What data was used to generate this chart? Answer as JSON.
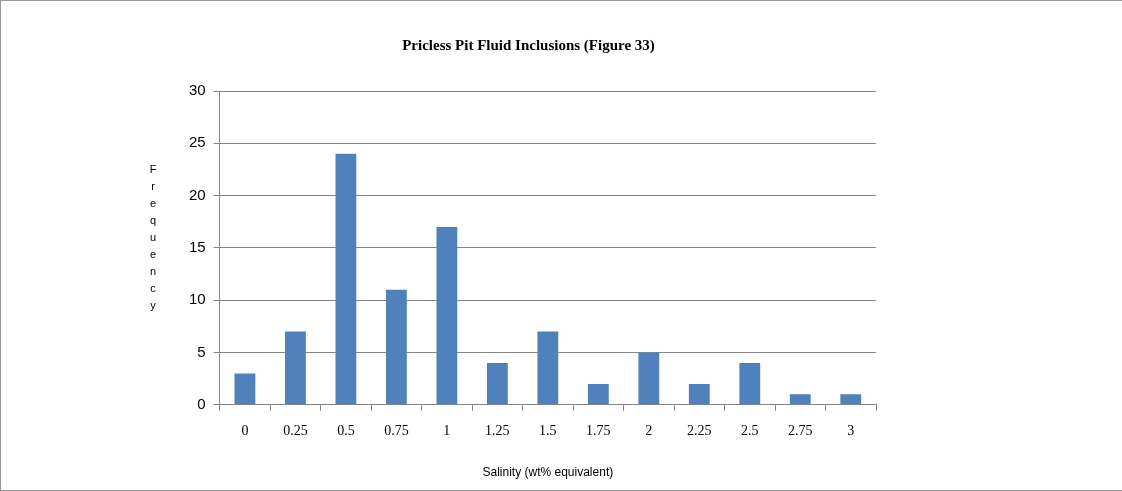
{
  "chart_data": {
    "type": "bar",
    "title": "Pricless Pit Fluid Inclusions (Figure 33)",
    "xlabel": "Salinity (wt% equivalent)",
    "ylabel": "Frequency",
    "categories": [
      "0",
      "0.25",
      "0.5",
      "0.75",
      "1",
      "1.25",
      "1.5",
      "1.75",
      "2",
      "2.25",
      "2.5",
      "2.75",
      "3"
    ],
    "values": [
      3,
      7,
      24,
      11,
      17,
      4,
      7,
      2,
      5,
      2,
      4,
      1,
      1
    ],
    "color": "#4f81bd",
    "ylim": [
      0,
      30
    ],
    "yticks": [
      0,
      5,
      10,
      15,
      20,
      25,
      30
    ],
    "grid": "y",
    "legend": false
  }
}
